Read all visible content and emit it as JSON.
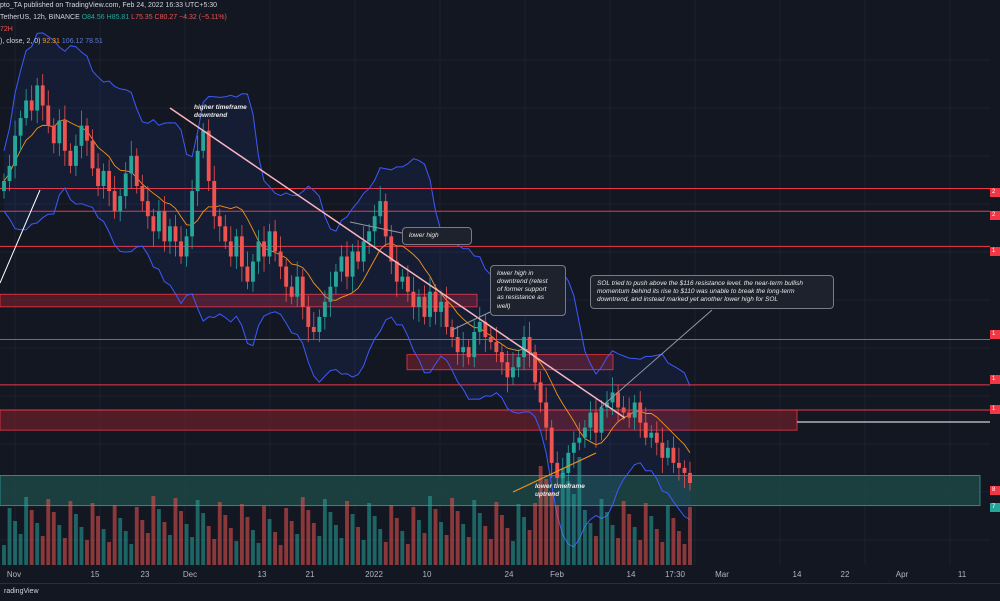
{
  "header": {
    "line1": "pto_TA published on TradingView.com, Feb 24, 2022 16:33 UTC+5:30",
    "line2_symbol": "TetherUS, 12h, BINANCE",
    "line2_o": "O84.56",
    "line2_h": "H85.81",
    "line2_l": "L75.35",
    "line2_c": "C80.27",
    "line2_chg": "−4.32 (−5.11%)",
    "line3": "72H",
    "line4_prefix": "), close, 2, 0)",
    "line4_v1": "92.31",
    "line4_v2": "106.12",
    "line4_v3": "78.51"
  },
  "annotations": {
    "higher_tf": "higher timeframe\ndowntrend",
    "lower_high": "lower high",
    "lower_high_retest": "lower high in\ndowntrend (retest\nof former support\nas resistance as\nwell)",
    "sol_note": "SOL tried to push above the $116 resistance level. the near-term bullish momentum behind its rise to $110 was unable to break the long-term downtrend, and instead marked yet another lower high for SOL",
    "lower_tf": "lower timeframe\nuptrend"
  },
  "footer": {
    "brand": "radingView"
  },
  "colors": {
    "bg": "#131722",
    "up": "#26a69a",
    "down": "#ef5350",
    "bb": "#3d5afe",
    "basis": "#f7931a",
    "resistance": "#f23645",
    "zone": "#7a1f2b",
    "support_zone": "#1f4d4a",
    "trend": "#f8b4c0"
  },
  "chart_data": {
    "type": "candlestick",
    "x_ticks": [
      "Nov",
      "15",
      "23",
      "Dec",
      "13",
      "21",
      "2022",
      "10",
      "24",
      "Feb",
      "14",
      "17:30",
      "Mar",
      "14",
      "22",
      "Apr",
      "11"
    ],
    "resistance_levels": [
      197,
      188,
      174,
      137,
      119,
      109
    ],
    "price_tags": [
      "2",
      "2",
      "1",
      "1",
      "1",
      "1",
      "8",
      "7"
    ],
    "zones": [
      {
        "name": "resistance-zone-1",
        "from": 150,
        "to": 155
      },
      {
        "name": "resistance-zone-2",
        "from": 125,
        "to": 131
      },
      {
        "name": "resistance-zone-3",
        "from": 101,
        "to": 109
      },
      {
        "name": "support-zone",
        "from": 71,
        "to": 83
      }
    ],
    "close": [
      200,
      206,
      218,
      225,
      232,
      228,
      238,
      230,
      222,
      215,
      224,
      212,
      206,
      214,
      222,
      216,
      205,
      198,
      204,
      196,
      188,
      194,
      203,
      210,
      198,
      192,
      186,
      180,
      188,
      176,
      182,
      176,
      170,
      178,
      196,
      212,
      220,
      200,
      186,
      182,
      176,
      170,
      178,
      166,
      160,
      168,
      176,
      170,
      180,
      172,
      166,
      158,
      154,
      162,
      150,
      142,
      140,
      146,
      152,
      158,
      164,
      170,
      162,
      172,
      168,
      176,
      180,
      186,
      192,
      178,
      168,
      160,
      162,
      156,
      150,
      154,
      146,
      156,
      148,
      152,
      142,
      138,
      132,
      134,
      130,
      140,
      144,
      138,
      136,
      132,
      128,
      122,
      126,
      130,
      138,
      132,
      120,
      112,
      102,
      88,
      82,
      84,
      92,
      96,
      98,
      102,
      108,
      100,
      110,
      112,
      116,
      110,
      108,
      106,
      112,
      104,
      98,
      100,
      96,
      90,
      94,
      88,
      86,
      84,
      80
    ]
  }
}
